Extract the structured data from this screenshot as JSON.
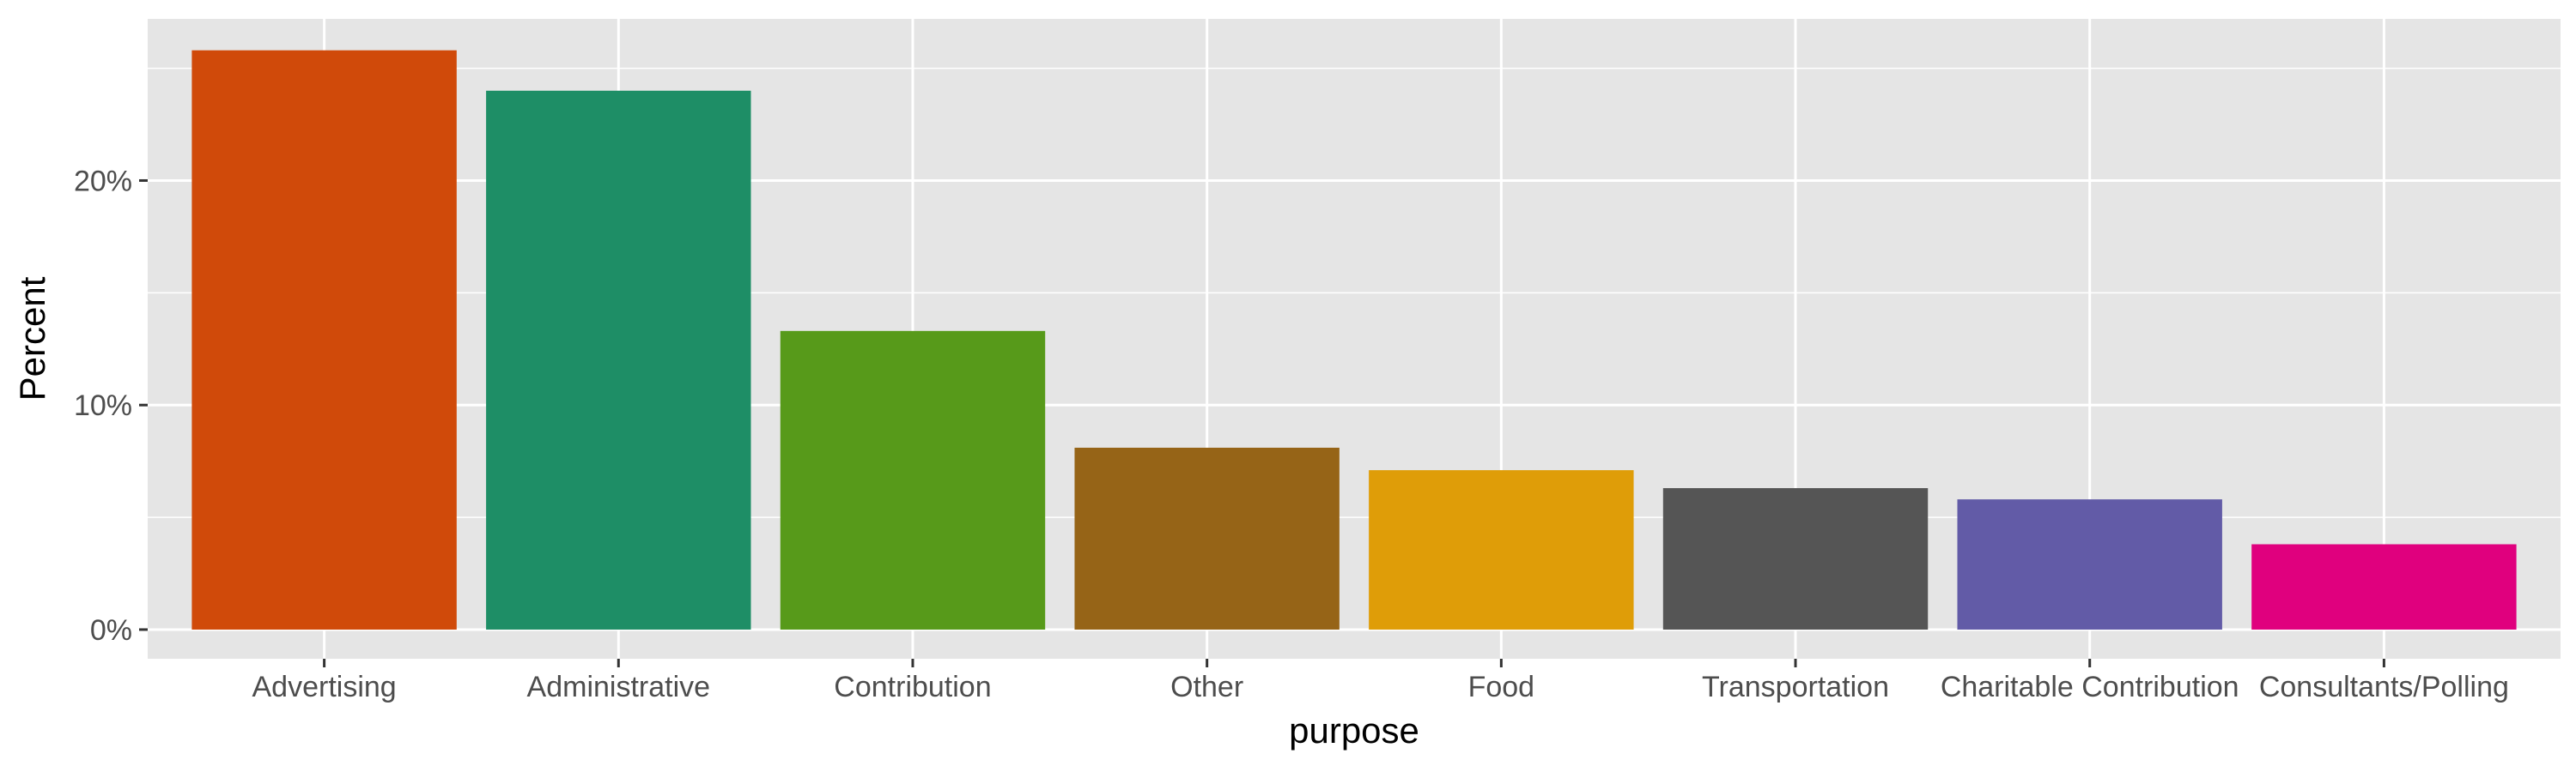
{
  "chart_data": {
    "type": "bar",
    "title": "",
    "xlabel": "purpose",
    "ylabel": "Percent",
    "categories": [
      "Advertising",
      "Administrative",
      "Contribution",
      "Other",
      "Food",
      "Transportation",
      "Charitable Contribution",
      "Consultants/Polling"
    ],
    "values": [
      25.8,
      24.0,
      13.3,
      8.1,
      7.1,
      6.3,
      5.8,
      3.8
    ],
    "colors": [
      "#D04A0A",
      "#1E8E66",
      "#579A1A",
      "#966417",
      "#DF9D08",
      "#555555",
      "#625BA7",
      "#E0007E"
    ],
    "ylim": [
      -1.3,
      27.2
    ],
    "yticks": [
      0,
      10,
      20
    ],
    "ytick_labels": [
      "0%",
      "10%",
      "20%"
    ],
    "grid": true,
    "panel_color": "#E5E5E5",
    "grid_color": "#FFFFFF",
    "legend": "none"
  }
}
